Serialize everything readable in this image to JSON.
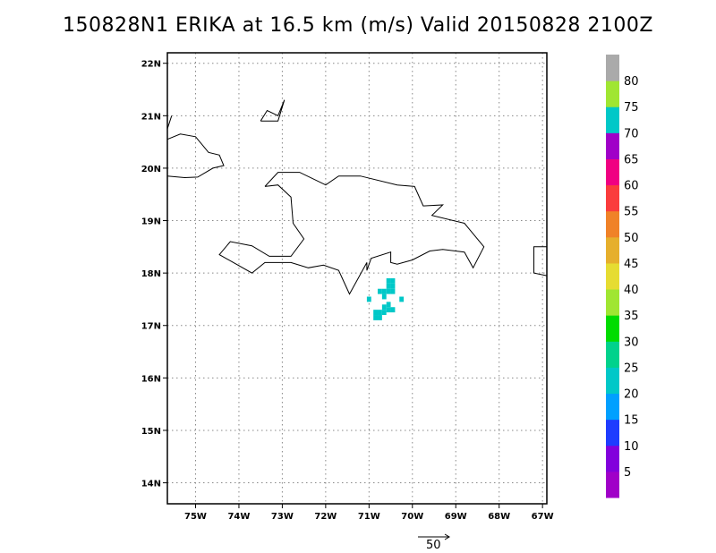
{
  "title": "150828N1 ERIKA at 16.5 km (m/s) Valid 20150828 2100Z",
  "map": {
    "lon_range": [
      -75.65,
      -66.9
    ],
    "lat_range": [
      13.6,
      22.2
    ],
    "lon_ticks": [
      {
        "value": -75,
        "label": "75W"
      },
      {
        "value": -74,
        "label": "74W"
      },
      {
        "value": -73,
        "label": "73W"
      },
      {
        "value": -72,
        "label": "72W"
      },
      {
        "value": -71,
        "label": "71W"
      },
      {
        "value": -70,
        "label": "70W"
      },
      {
        "value": -69,
        "label": "69W"
      },
      {
        "value": -68,
        "label": "68W"
      },
      {
        "value": -67,
        "label": "67W"
      }
    ],
    "lat_ticks": [
      {
        "value": 14,
        "label": "14N"
      },
      {
        "value": 15,
        "label": "15N"
      },
      {
        "value": 16,
        "label": "16N"
      },
      {
        "value": 17,
        "label": "17N"
      },
      {
        "value": 18,
        "label": "18N"
      },
      {
        "value": 19,
        "label": "19N"
      },
      {
        "value": 20,
        "label": "20N"
      },
      {
        "value": 21,
        "label": "21N"
      },
      {
        "value": 22,
        "label": "22N"
      }
    ],
    "grid": "dotted",
    "coastlines": [
      [
        [
          -75.65,
          20.55
        ],
        [
          -75.35,
          20.65
        ],
        [
          -75.0,
          20.6
        ],
        [
          -74.7,
          20.3
        ],
        [
          -74.45,
          20.25
        ],
        [
          -74.35,
          20.05
        ],
        [
          -74.6,
          20.0
        ],
        [
          -74.95,
          19.83
        ],
        [
          -75.25,
          19.82
        ],
        [
          -75.65,
          19.85
        ]
      ],
      [
        [
          -75.65,
          20.75
        ],
        [
          -75.55,
          21.0
        ]
      ],
      [
        [
          -73.5,
          20.9
        ],
        [
          -73.35,
          21.1
        ],
        [
          -73.1,
          21.0
        ],
        [
          -72.95,
          21.3
        ],
        [
          -73.1,
          20.9
        ],
        [
          -73.5,
          20.9
        ]
      ],
      [
        [
          -73.4,
          19.65
        ],
        [
          -73.1,
          19.92
        ],
        [
          -72.6,
          19.92
        ],
        [
          -72.0,
          19.68
        ],
        [
          -71.7,
          19.85
        ],
        [
          -71.2,
          19.85
        ],
        [
          -70.35,
          19.68
        ],
        [
          -69.95,
          19.65
        ],
        [
          -69.75,
          19.28
        ],
        [
          -69.3,
          19.3
        ],
        [
          -69.55,
          19.1
        ],
        [
          -68.8,
          18.95
        ],
        [
          -68.35,
          18.5
        ],
        [
          -68.6,
          18.1
        ],
        [
          -68.8,
          18.4
        ],
        [
          -69.3,
          18.45
        ],
        [
          -69.6,
          18.42
        ],
        [
          -70.0,
          18.25
        ],
        [
          -70.35,
          18.17
        ],
        [
          -70.5,
          18.2
        ],
        [
          -70.5,
          18.4
        ],
        [
          -70.95,
          18.28
        ],
        [
          -71.05,
          18.05
        ],
        [
          -71.05,
          18.2
        ],
        [
          -71.45,
          17.6
        ],
        [
          -71.7,
          18.05
        ],
        [
          -72.05,
          18.15
        ],
        [
          -72.4,
          18.1
        ],
        [
          -72.8,
          18.2
        ],
        [
          -73.4,
          18.2
        ],
        [
          -73.7,
          18.0
        ],
        [
          -74.45,
          18.35
        ],
        [
          -74.2,
          18.6
        ],
        [
          -73.7,
          18.52
        ],
        [
          -73.3,
          18.32
        ],
        [
          -72.8,
          18.32
        ],
        [
          -72.5,
          18.65
        ],
        [
          -72.75,
          18.95
        ],
        [
          -72.8,
          19.45
        ],
        [
          -73.1,
          19.68
        ],
        [
          -73.4,
          19.65
        ]
      ],
      [
        [
          -66.9,
          18.5
        ],
        [
          -67.2,
          18.5
        ],
        [
          -67.2,
          18.0
        ],
        [
          -66.9,
          17.95
        ]
      ]
    ],
    "shaded_cells": [
      {
        "lon": -70.55,
        "lat": 17.85,
        "speed": 70
      },
      {
        "lon": -70.45,
        "lat": 17.85,
        "speed": 70
      },
      {
        "lon": -70.55,
        "lat": 17.75,
        "speed": 70
      },
      {
        "lon": -70.45,
        "lat": 17.75,
        "speed": 70
      },
      {
        "lon": -70.75,
        "lat": 17.65,
        "speed": 70
      },
      {
        "lon": -70.65,
        "lat": 17.65,
        "speed": 70
      },
      {
        "lon": -70.55,
        "lat": 17.65,
        "speed": 70
      },
      {
        "lon": -70.45,
        "lat": 17.65,
        "speed": 70
      },
      {
        "lon": -70.65,
        "lat": 17.55,
        "speed": 70
      },
      {
        "lon": -71.0,
        "lat": 17.5,
        "speed": 70
      },
      {
        "lon": -70.25,
        "lat": 17.5,
        "speed": 70
      },
      {
        "lon": -70.55,
        "lat": 17.4,
        "speed": 70
      },
      {
        "lon": -70.65,
        "lat": 17.35,
        "speed": 70
      },
      {
        "lon": -70.55,
        "lat": 17.3,
        "speed": 70
      },
      {
        "lon": -70.45,
        "lat": 17.3,
        "speed": 70
      },
      {
        "lon": -70.85,
        "lat": 17.25,
        "speed": 70
      },
      {
        "lon": -70.75,
        "lat": 17.25,
        "speed": 70
      },
      {
        "lon": -70.65,
        "lat": 17.25,
        "speed": 70
      },
      {
        "lon": -70.85,
        "lat": 17.15,
        "speed": 70
      },
      {
        "lon": -70.75,
        "lat": 17.15,
        "speed": 70
      }
    ]
  },
  "colorbar": {
    "bins": [
      {
        "color": "#a000c8",
        "label": "5"
      },
      {
        "color": "#8200dc",
        "label": "10"
      },
      {
        "color": "#1e3cff",
        "label": "15"
      },
      {
        "color": "#00a0ff",
        "label": "20"
      },
      {
        "color": "#00c8c8",
        "label": "25"
      },
      {
        "color": "#00d28c",
        "label": "30"
      },
      {
        "color": "#00dc00",
        "label": "35"
      },
      {
        "color": "#a0e632",
        "label": "40"
      },
      {
        "color": "#e6dc32",
        "label": "45"
      },
      {
        "color": "#e6af2d",
        "label": "50"
      },
      {
        "color": "#f08228",
        "label": "55"
      },
      {
        "color": "#fa3c3c",
        "label": "60"
      },
      {
        "color": "#f00082",
        "label": "65"
      },
      {
        "color": "#a000c8",
        "label": "70"
      },
      {
        "color": "#00c8c8",
        "label": "75"
      },
      {
        "color": "#a0e632",
        "label": "80"
      },
      {
        "color": "#aaaaaa",
        "label": ""
      }
    ]
  },
  "vector_key": {
    "label": "50"
  }
}
